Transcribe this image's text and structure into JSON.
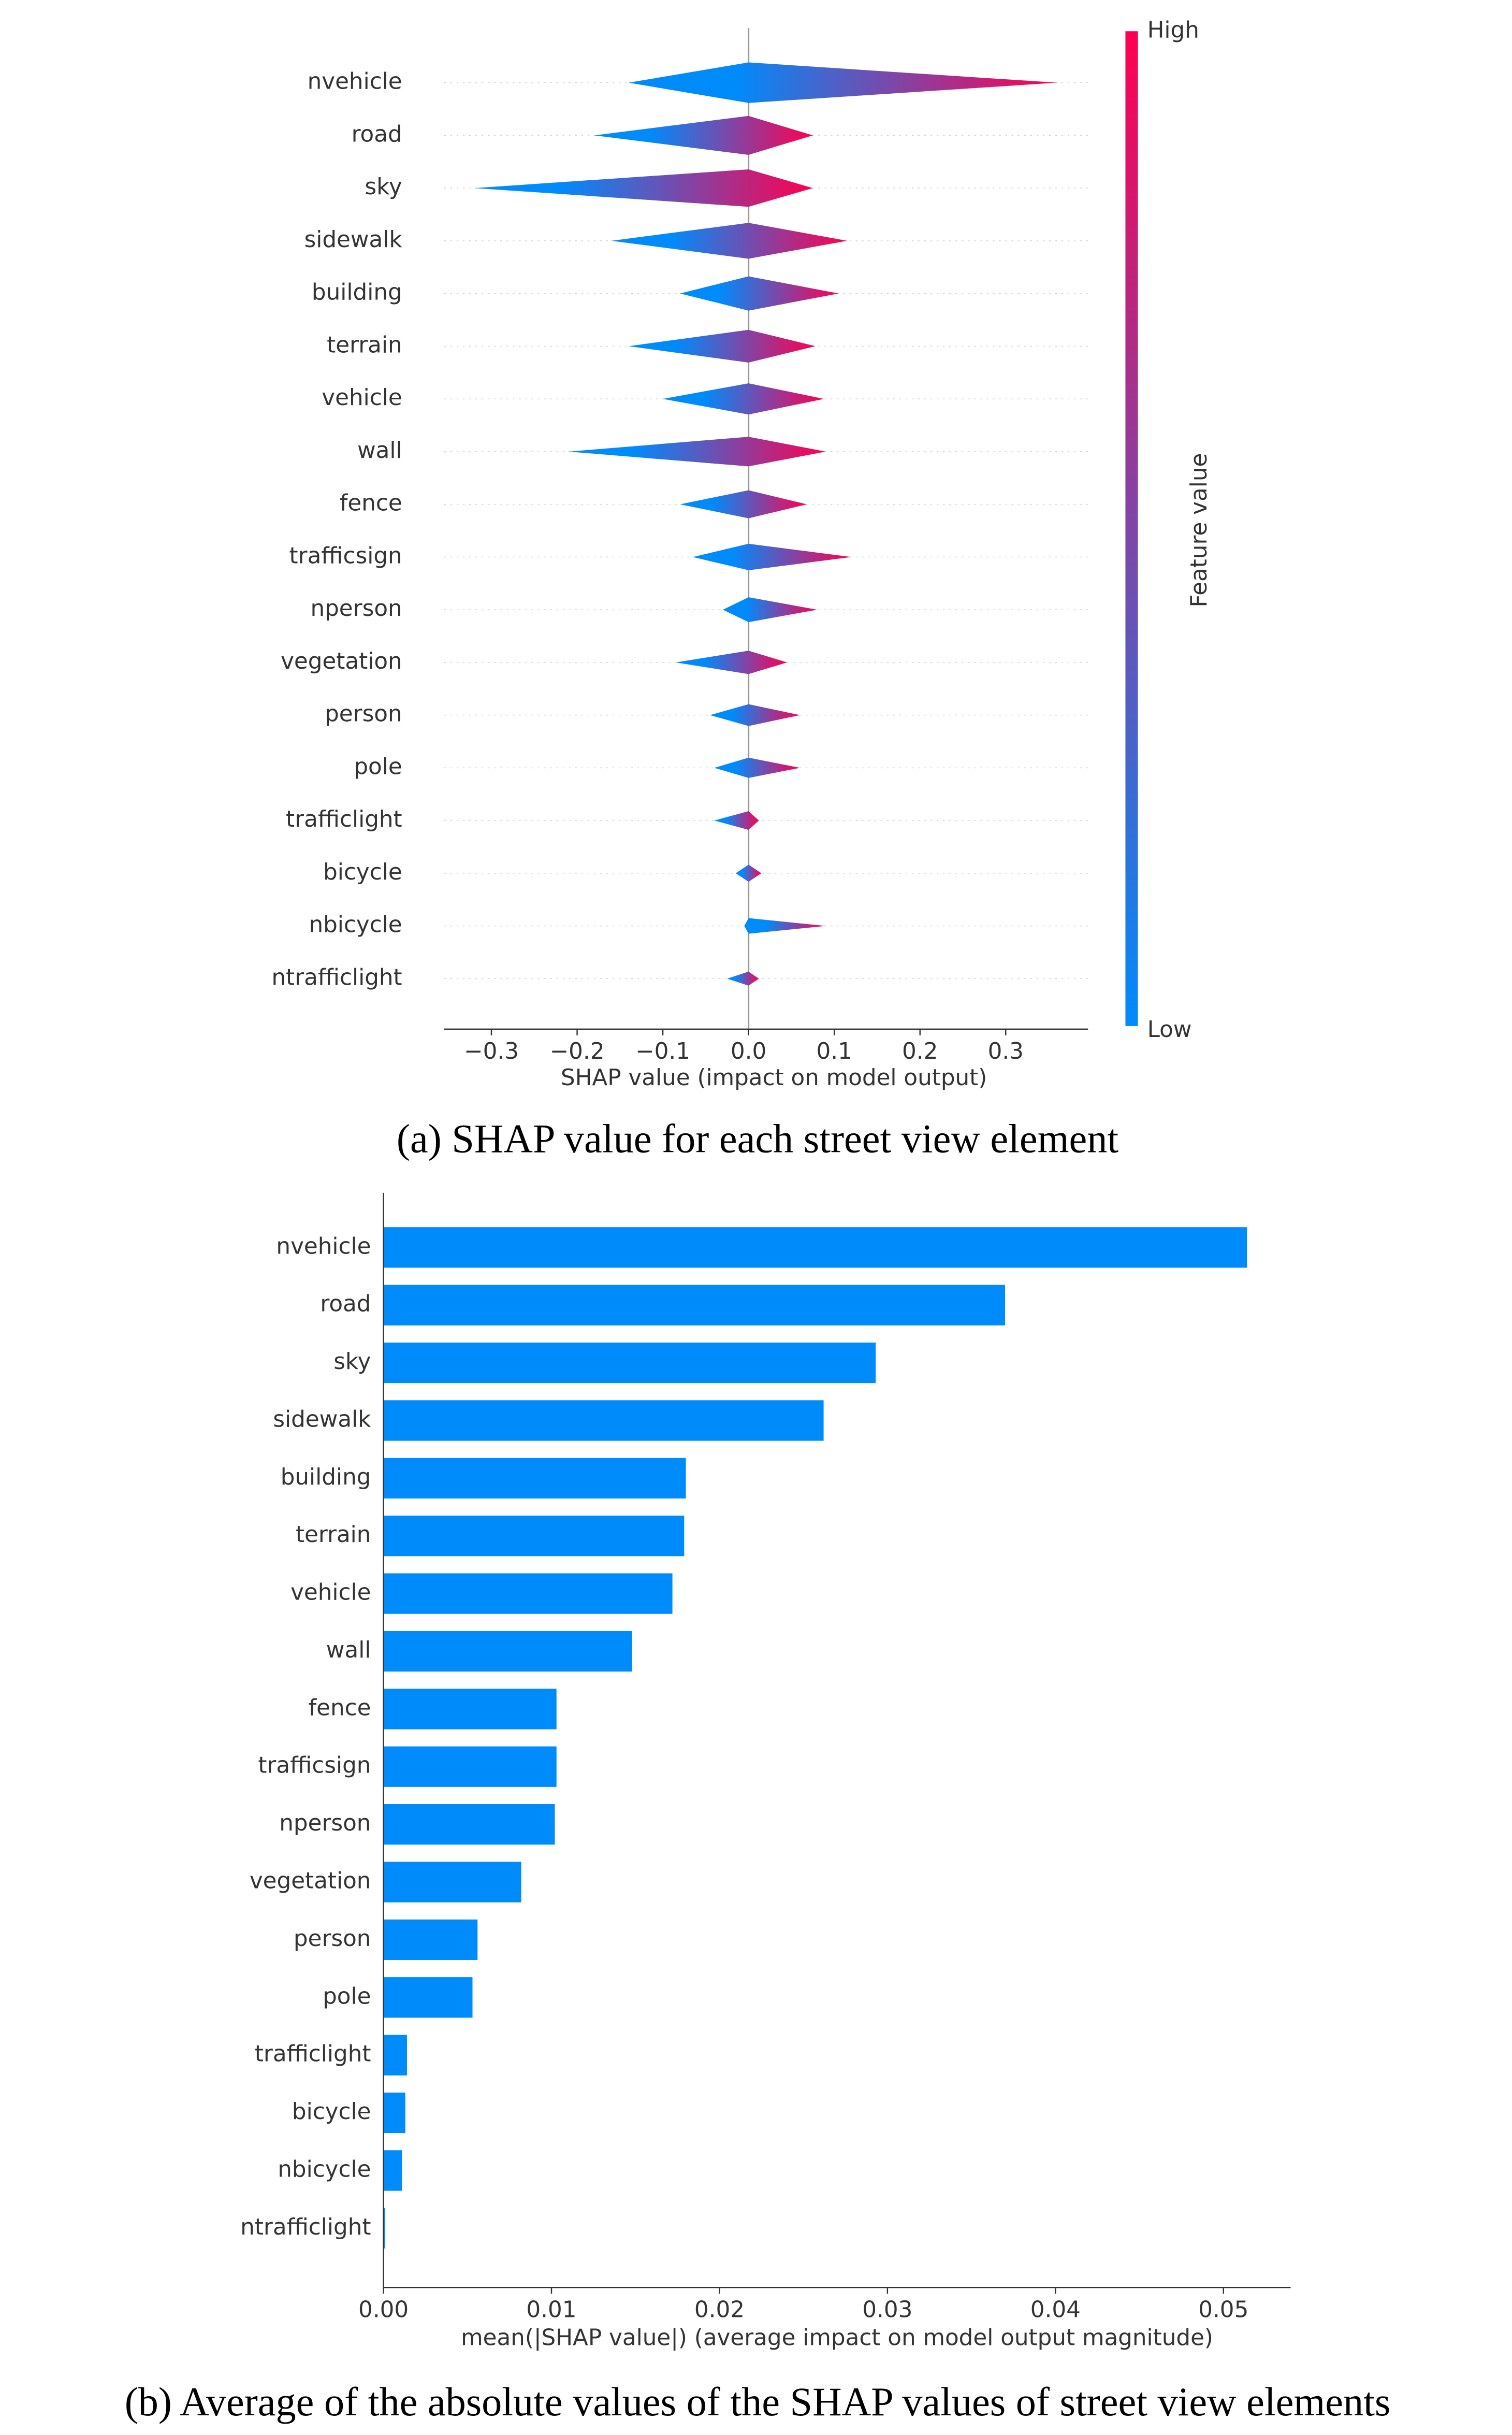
{
  "chart_data": [
    {
      "type": "beeswarm",
      "categories": [
        "nvehicle",
        "road",
        "sky",
        "sidewalk",
        "building",
        "terrain",
        "vehicle",
        "wall",
        "fence",
        "trafficsign",
        "nperson",
        "vegetation",
        "person",
        "pole",
        "trafficlight",
        "bicycle",
        "nbicycle",
        "ntrafficlight"
      ],
      "ranges": [
        [
          -0.14,
          0.36
        ],
        [
          -0.18,
          0.075
        ],
        [
          -0.32,
          0.075
        ],
        [
          -0.16,
          0.115
        ],
        [
          -0.08,
          0.105
        ],
        [
          -0.14,
          0.078
        ],
        [
          -0.1,
          0.088
        ],
        [
          -0.21,
          0.09
        ],
        [
          -0.08,
          0.068
        ],
        [
          -0.065,
          0.12
        ],
        [
          -0.03,
          0.08
        ],
        [
          -0.085,
          0.045
        ],
        [
          -0.045,
          0.06
        ],
        [
          -0.04,
          0.06
        ],
        [
          -0.04,
          0.012
        ],
        [
          -0.015,
          0.015
        ],
        [
          -0.005,
          0.09
        ],
        [
          -0.025,
          0.012
        ]
      ],
      "xlim": [
        -0.355,
        0.396
      ],
      "xticks": [
        {
          "value": -0.3,
          "label": "−0.3"
        },
        {
          "value": -0.2,
          "label": "−0.2"
        },
        {
          "value": -0.1,
          "label": "−0.1"
        },
        {
          "value": 0,
          "label": "0.0"
        },
        0.1,
        0.2,
        0.3
      ],
      "xlabel": "SHAP value (impact on model output)",
      "colorbar": {
        "high": "High",
        "low": "Low",
        "label": "Feature value",
        "colors": [
          "#008bfb",
          "#ff0051"
        ]
      },
      "caption": "(a) SHAP value for each street view element"
    },
    {
      "type": "bar",
      "orientation": "horizontal",
      "categories": [
        "nvehicle",
        "road",
        "sky",
        "sidewalk",
        "building",
        "terrain",
        "vehicle",
        "wall",
        "fence",
        "trafficsign",
        "nperson",
        "vegetation",
        "person",
        "pole",
        "trafficlight",
        "bicycle",
        "nbicycle",
        "ntrafficlight"
      ],
      "values": [
        0.0514,
        0.037,
        0.0293,
        0.0262,
        0.018,
        0.0179,
        0.0172,
        0.0148,
        0.0103,
        0.0103,
        0.0102,
        0.0082,
        0.0056,
        0.0053,
        0.0014,
        0.0013,
        0.0011,
        0.0001
      ],
      "color": "#008bfb",
      "xlim": [
        0,
        0.054
      ],
      "xticks": [
        {
          "value": 0,
          "label": "0.00"
        },
        0.01,
        0.02,
        0.03,
        0.04,
        0.05
      ],
      "xlabel": "mean(|SHAP value|) (average impact on model output magnitude)",
      "caption": "(b) Average of the absolute values of the SHAP values of street view elements"
    }
  ]
}
